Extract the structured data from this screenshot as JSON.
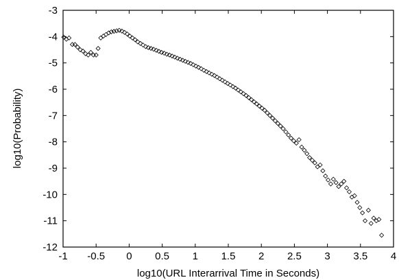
{
  "chart_data": {
    "type": "scatter",
    "title": "",
    "xlabel": "log10(URL Interarrival Time in Seconds)",
    "ylabel": "log10(Probability)",
    "xlim": [
      -1,
      4
    ],
    "ylim": [
      -12,
      -3
    ],
    "xticks": [
      -1,
      -0.5,
      0,
      0.5,
      1,
      1.5,
      2,
      2.5,
      3,
      3.5,
      4
    ],
    "yticks": [
      -12,
      -11,
      -10,
      -9,
      -8,
      -7,
      -6,
      -5,
      -4,
      -3
    ],
    "xtick_labels": [
      "-1",
      "-0.5",
      "0",
      "0.5",
      "1",
      "1.5",
      "2",
      "2.5",
      "3",
      "3.5",
      "4"
    ],
    "ytick_labels": [
      "-12",
      "-11",
      "-10",
      "-9",
      "-8",
      "-7",
      "-6",
      "-5",
      "-4",
      "-3"
    ],
    "marker": "diamond-open",
    "grid": false,
    "series": [
      {
        "points": [
          [
            -0.99,
            -4.02
          ],
          [
            -0.95,
            -4.1
          ],
          [
            -0.91,
            -4.05
          ],
          [
            -0.86,
            -4.3
          ],
          [
            -0.82,
            -4.3
          ],
          [
            -0.78,
            -4.4
          ],
          [
            -0.74,
            -4.5
          ],
          [
            -0.7,
            -4.55
          ],
          [
            -0.66,
            -4.65
          ],
          [
            -0.62,
            -4.7
          ],
          [
            -0.58,
            -4.6
          ],
          [
            -0.54,
            -4.7
          ],
          [
            -0.5,
            -4.7
          ],
          [
            -0.47,
            -4.45
          ],
          [
            -0.43,
            -4.05
          ],
          [
            -0.39,
            -3.98
          ],
          [
            -0.35,
            -3.92
          ],
          [
            -0.31,
            -3.86
          ],
          [
            -0.27,
            -3.82
          ],
          [
            -0.23,
            -3.8
          ],
          [
            -0.19,
            -3.78
          ],
          [
            -0.15,
            -3.76
          ],
          [
            -0.11,
            -3.79
          ],
          [
            -0.07,
            -3.84
          ],
          [
            -0.03,
            -3.9
          ],
          [
            0.01,
            -3.98
          ],
          [
            0.05,
            -4.05
          ],
          [
            0.09,
            -4.12
          ],
          [
            0.13,
            -4.2
          ],
          [
            0.17,
            -4.26
          ],
          [
            0.21,
            -4.32
          ],
          [
            0.25,
            -4.38
          ],
          [
            0.29,
            -4.42
          ],
          [
            0.33,
            -4.45
          ],
          [
            0.37,
            -4.48
          ],
          [
            0.41,
            -4.52
          ],
          [
            0.45,
            -4.56
          ],
          [
            0.49,
            -4.6
          ],
          [
            0.53,
            -4.63
          ],
          [
            0.57,
            -4.67
          ],
          [
            0.61,
            -4.7
          ],
          [
            0.65,
            -4.74
          ],
          [
            0.69,
            -4.78
          ],
          [
            0.73,
            -4.82
          ],
          [
            0.77,
            -4.86
          ],
          [
            0.81,
            -4.9
          ],
          [
            0.85,
            -4.94
          ],
          [
            0.89,
            -4.98
          ],
          [
            0.93,
            -5.02
          ],
          [
            0.97,
            -5.07
          ],
          [
            1.01,
            -5.12
          ],
          [
            1.05,
            -5.17
          ],
          [
            1.09,
            -5.22
          ],
          [
            1.13,
            -5.28
          ],
          [
            1.17,
            -5.33
          ],
          [
            1.21,
            -5.38
          ],
          [
            1.25,
            -5.43
          ],
          [
            1.29,
            -5.48
          ],
          [
            1.33,
            -5.54
          ],
          [
            1.37,
            -5.6
          ],
          [
            1.41,
            -5.66
          ],
          [
            1.45,
            -5.72
          ],
          [
            1.49,
            -5.78
          ],
          [
            1.53,
            -5.84
          ],
          [
            1.57,
            -5.9
          ],
          [
            1.61,
            -5.96
          ],
          [
            1.65,
            -6.03
          ],
          [
            1.69,
            -6.1
          ],
          [
            1.73,
            -6.17
          ],
          [
            1.77,
            -6.24
          ],
          [
            1.81,
            -6.32
          ],
          [
            1.85,
            -6.4
          ],
          [
            1.89,
            -6.48
          ],
          [
            1.93,
            -6.56
          ],
          [
            1.97,
            -6.64
          ],
          [
            2.01,
            -6.72
          ],
          [
            2.05,
            -6.8
          ],
          [
            2.09,
            -6.9
          ],
          [
            2.13,
            -7.0
          ],
          [
            2.17,
            -7.1
          ],
          [
            2.21,
            -7.2
          ],
          [
            2.25,
            -7.3
          ],
          [
            2.29,
            -7.4
          ],
          [
            2.33,
            -7.5
          ],
          [
            2.37,
            -7.62
          ],
          [
            2.41,
            -7.74
          ],
          [
            2.45,
            -7.86
          ],
          [
            2.49,
            -7.96
          ],
          [
            2.53,
            -8.05
          ],
          [
            2.57,
            -7.92
          ],
          [
            2.61,
            -8.2
          ],
          [
            2.65,
            -8.32
          ],
          [
            2.69,
            -8.45
          ],
          [
            2.73,
            -8.6
          ],
          [
            2.77,
            -8.7
          ],
          [
            2.81,
            -8.8
          ],
          [
            2.85,
            -8.95
          ],
          [
            2.89,
            -8.88
          ],
          [
            2.93,
            -9.1
          ],
          [
            2.97,
            -9.3
          ],
          [
            3.01,
            -9.45
          ],
          [
            3.05,
            -9.6
          ],
          [
            3.09,
            -9.42
          ],
          [
            3.13,
            -9.55
          ],
          [
            3.17,
            -9.7
          ],
          [
            3.21,
            -9.6
          ],
          [
            3.25,
            -9.5
          ],
          [
            3.29,
            -9.75
          ],
          [
            3.33,
            -9.9
          ],
          [
            3.37,
            -10.1
          ],
          [
            3.41,
            -10.05
          ],
          [
            3.45,
            -10.3
          ],
          [
            3.49,
            -10.5
          ],
          [
            3.53,
            -10.7
          ],
          [
            3.57,
            -11.0
          ],
          [
            3.62,
            -10.6
          ],
          [
            3.66,
            -11.1
          ],
          [
            3.7,
            -10.9
          ],
          [
            3.74,
            -11.0
          ],
          [
            3.78,
            -10.95
          ],
          [
            3.82,
            -11.55
          ]
        ]
      }
    ]
  }
}
